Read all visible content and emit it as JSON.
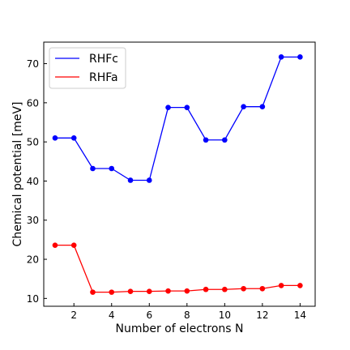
{
  "chart_data": {
    "type": "line",
    "xlabel": "Number of electrons N",
    "ylabel": "Chemical potential [meV]",
    "xlim": [
      0.4,
      14.8
    ],
    "ylim": [
      8.0,
      75.5
    ],
    "x_ticks": [
      2,
      4,
      6,
      8,
      10,
      12,
      14
    ],
    "y_ticks": [
      10,
      20,
      30,
      40,
      50,
      60,
      70
    ],
    "grid": false,
    "legend_position": "top-left",
    "series": [
      {
        "name": "RHFc",
        "color": "#0000ff",
        "x": [
          1,
          2,
          3,
          4,
          5,
          6,
          7,
          8,
          9,
          10,
          11,
          12,
          13,
          14
        ],
        "y": [
          51.0,
          51.0,
          43.2,
          43.2,
          40.2,
          40.2,
          58.8,
          58.8,
          50.5,
          50.5,
          59.0,
          59.0,
          71.7,
          71.7
        ]
      },
      {
        "name": "RHFa",
        "color": "#ff0000",
        "x": [
          1,
          2,
          3,
          4,
          5,
          6,
          7,
          8,
          9,
          10,
          11,
          12,
          13,
          14
        ],
        "y": [
          23.6,
          23.6,
          11.6,
          11.6,
          11.8,
          11.8,
          11.9,
          11.9,
          12.3,
          12.3,
          12.5,
          12.5,
          13.3,
          13.3
        ]
      }
    ]
  }
}
